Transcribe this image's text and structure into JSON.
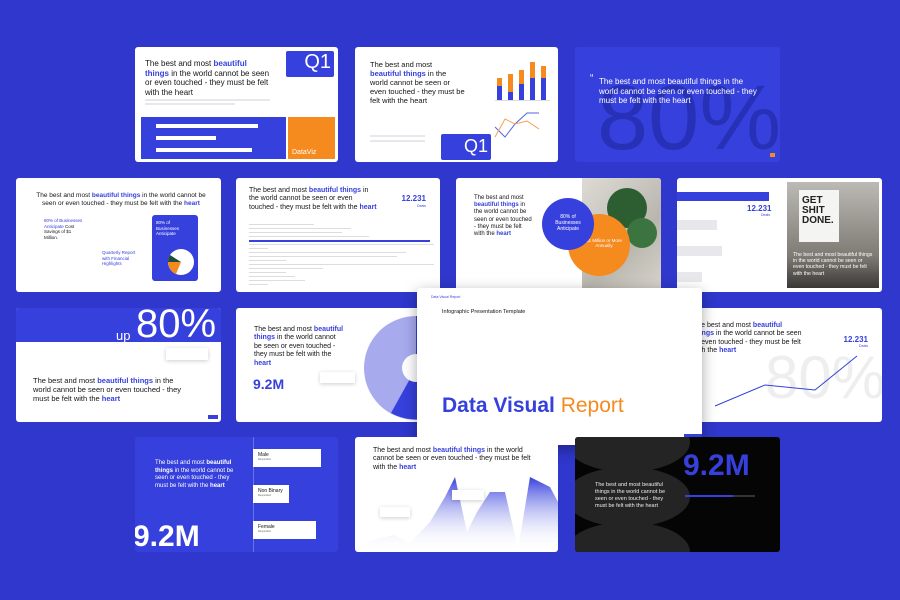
{
  "headline": {
    "pre": "The best and most ",
    "hl": "beautiful things",
    "mid": " in the world cannot be seen or even touched - they must be felt with the ",
    "end": "heart",
    "quote": "The best and most beautiful things in the world cannot be seen or even touched - they must be felt with the heart"
  },
  "colors": {
    "background": "#2f37cc",
    "accent": "#3640dc",
    "orange": "#f58a1f",
    "dark": "#050505"
  },
  "q1": "Q1",
  "dataviz": "DataViz",
  "percent": "80%",
  "up": "up",
  "up80": "80%",
  "deals_value": "12.231",
  "deals_label": "Deals",
  "stat": "9.2M",
  "main": {
    "header": "Data Visual Report",
    "subtitle": "Infographic Presentation Template",
    "title_a": "Data Visual",
    "title_b": "Report"
  },
  "slide_d": {
    "left_a": "80% of Businesses Anticipate",
    "left_b": " Cost Savings of $1 Million.",
    "middle": "Quarterly Report with Financial Highlights",
    "right": "80% of Businesses Anticipate"
  },
  "slide_f": {
    "circle_blue": "80% of Businesses Anticipate",
    "circle_orange": "$1 Million or More Annually"
  },
  "slide_g": {
    "poster": "GET SHIT DONE."
  },
  "slide_k": {
    "bars": [
      {
        "label": "Male",
        "sub": "Responded",
        "fill": 0.75
      },
      {
        "label": "Non Binary",
        "sub": "Responded",
        "fill": 0.4
      },
      {
        "label": "Female",
        "sub": "Responded",
        "fill": 0.7
      }
    ]
  },
  "slide_a": {
    "bars": [
      0.85,
      0.5,
      0.8
    ]
  },
  "slide_b": {
    "stack": [
      [
        0.35,
        0.2
      ],
      [
        0.2,
        0.45
      ],
      [
        0.4,
        0.35
      ],
      [
        0.55,
        0.4
      ],
      [
        0.55,
        0.3
      ]
    ]
  }
}
